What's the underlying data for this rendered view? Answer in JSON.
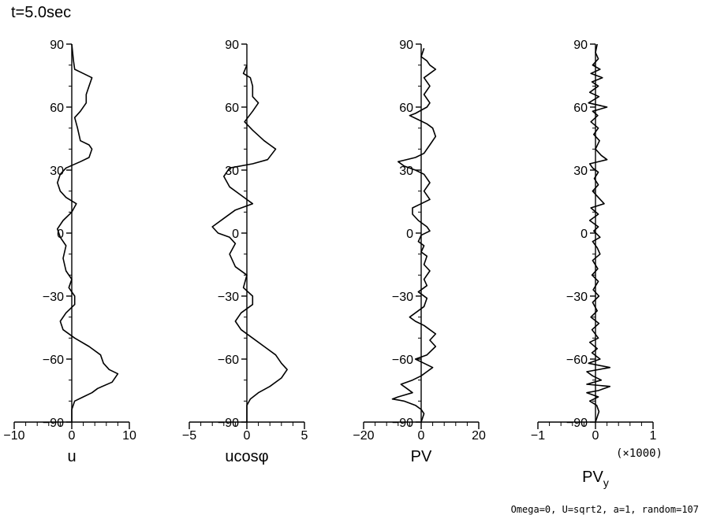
{
  "title": "t=5.0sec",
  "footer": "Omega=0, U=sqrt2, a=1, random=107",
  "chart_data": [
    {
      "type": "line",
      "xlabel": "u",
      "xticks": [
        "−10",
        "0",
        "10"
      ],
      "xlim": [
        -10,
        10
      ],
      "yticks": [
        "90",
        "60",
        "30",
        "0",
        "−30",
        "−60",
        "−90"
      ],
      "ylim": [
        -90,
        90
      ],
      "series": [
        {
          "points": [
            [
              0,
              90
            ],
            [
              0.3,
              82
            ],
            [
              0.5,
              78
            ],
            [
              2,
              76
            ],
            [
              3.5,
              74
            ],
            [
              3,
              70
            ],
            [
              2.5,
              66
            ],
            [
              2.5,
              62
            ],
            [
              1.5,
              58
            ],
            [
              0.5,
              55
            ],
            [
              1,
              50
            ],
            [
              1.5,
              44
            ],
            [
              3,
              42
            ],
            [
              3.5,
              40
            ],
            [
              3,
              36
            ],
            [
              1.5,
              34
            ],
            [
              -1,
              31
            ],
            [
              -2,
              28
            ],
            [
              -2.5,
              24
            ],
            [
              -2,
              20
            ],
            [
              -1,
              17
            ],
            [
              0.8,
              14
            ],
            [
              0,
              10
            ],
            [
              -1.5,
              6
            ],
            [
              -2.5,
              2
            ],
            [
              -2,
              -2
            ],
            [
              -1,
              -6
            ],
            [
              -1.5,
              -12
            ],
            [
              -1,
              -18
            ],
            [
              0,
              -22
            ],
            [
              -0.5,
              -26
            ],
            [
              0.5,
              -30
            ],
            [
              0.5,
              -34
            ],
            [
              -1,
              -38
            ],
            [
              -2,
              -42
            ],
            [
              -1.5,
              -46
            ],
            [
              0.5,
              -50
            ],
            [
              3,
              -54
            ],
            [
              5,
              -58
            ],
            [
              5.5,
              -62
            ],
            [
              6.5,
              -65
            ],
            [
              8,
              -67
            ],
            [
              7,
              -71
            ],
            [
              4.5,
              -74
            ],
            [
              3.5,
              -76
            ],
            [
              2,
              -78
            ],
            [
              0.5,
              -80
            ],
            [
              0,
              -84
            ],
            [
              0,
              -90
            ]
          ]
        }
      ]
    },
    {
      "type": "line",
      "xlabel": "ucosφ",
      "xticks": [
        "−5",
        "0",
        "5"
      ],
      "xlim": [
        -5,
        5
      ],
      "yticks": [
        "90",
        "60",
        "30",
        "0",
        "−30",
        "−60",
        "−90"
      ],
      "ylim": [
        -90,
        90
      ],
      "series": [
        {
          "points": [
            [
              0,
              80
            ],
            [
              -0.3,
              76
            ],
            [
              0.3,
              74
            ],
            [
              0.5,
              70
            ],
            [
              0.5,
              65
            ],
            [
              1,
              62
            ],
            [
              0.5,
              58
            ],
            [
              -0.2,
              53
            ],
            [
              0.5,
              49
            ],
            [
              1.5,
              44
            ],
            [
              2,
              42
            ],
            [
              2.5,
              40
            ],
            [
              1.8,
              35
            ],
            [
              0.5,
              33
            ],
            [
              -1.5,
              31
            ],
            [
              -2,
              27
            ],
            [
              -1.5,
              22
            ],
            [
              -0.5,
              18
            ],
            [
              0.5,
              14
            ],
            [
              -1,
              11
            ],
            [
              -2,
              7
            ],
            [
              -3,
              3
            ],
            [
              -2.5,
              0
            ],
            [
              -1.5,
              -2
            ],
            [
              -1,
              -5
            ],
            [
              -1.5,
              -10
            ],
            [
              -1,
              -16
            ],
            [
              0,
              -20
            ],
            [
              -0.3,
              -26
            ],
            [
              0.5,
              -30
            ],
            [
              0.5,
              -34
            ],
            [
              -0.5,
              -38
            ],
            [
              -1,
              -42
            ],
            [
              -0.5,
              -46
            ],
            [
              0.5,
              -50
            ],
            [
              1.5,
              -54
            ],
            [
              2.5,
              -58
            ],
            [
              3,
              -62
            ],
            [
              3.5,
              -65
            ],
            [
              3,
              -69
            ],
            [
              2,
              -73
            ],
            [
              1,
              -76
            ],
            [
              0.3,
              -79
            ],
            [
              0,
              -82
            ],
            [
              0,
              -90
            ]
          ]
        }
      ]
    },
    {
      "type": "line",
      "xlabel": "PV",
      "xticks": [
        "−20",
        "0",
        "20"
      ],
      "xlim": [
        -20,
        20
      ],
      "yticks": [
        "90",
        "60",
        "30",
        "0",
        "−30",
        "−60",
        "−90"
      ],
      "ylim": [
        -90,
        90
      ],
      "series": [
        {
          "points": [
            [
              1,
              88
            ],
            [
              0,
              84
            ],
            [
              2,
              82
            ],
            [
              3,
              80
            ],
            [
              5,
              78
            ],
            [
              3,
              76
            ],
            [
              1,
              74
            ],
            [
              3,
              70
            ],
            [
              1,
              66
            ],
            [
              3,
              62
            ],
            [
              2,
              60
            ],
            [
              -2,
              57
            ],
            [
              -4,
              56
            ],
            [
              -1,
              54
            ],
            [
              2,
              52
            ],
            [
              4,
              50
            ],
            [
              5,
              46
            ],
            [
              3,
              42
            ],
            [
              1,
              38
            ],
            [
              -2,
              36
            ],
            [
              -8,
              34
            ],
            [
              -6,
              32
            ],
            [
              -2,
              30
            ],
            [
              1,
              28
            ],
            [
              3,
              24
            ],
            [
              1,
              20
            ],
            [
              3,
              16
            ],
            [
              0,
              14
            ],
            [
              -3,
              12
            ],
            [
              -3,
              9
            ],
            [
              -1,
              6
            ],
            [
              2,
              3
            ],
            [
              3,
              1
            ],
            [
              0,
              -1
            ],
            [
              -1,
              -4
            ],
            [
              1,
              -6
            ],
            [
              0,
              -9
            ],
            [
              2,
              -11
            ],
            [
              1,
              -15
            ],
            [
              3,
              -18
            ],
            [
              1,
              -22
            ],
            [
              2,
              -25
            ],
            [
              -1,
              -28
            ],
            [
              2,
              -31
            ],
            [
              1,
              -35
            ],
            [
              -2,
              -38
            ],
            [
              -4,
              -40
            ],
            [
              -2,
              -42
            ],
            [
              1,
              -44
            ],
            [
              3,
              -46
            ],
            [
              5,
              -48
            ],
            [
              3,
              -51
            ],
            [
              5,
              -54
            ],
            [
              2,
              -58
            ],
            [
              -2,
              -60
            ],
            [
              1,
              -62
            ],
            [
              4,
              -64
            ],
            [
              2,
              -66
            ],
            [
              0,
              -68
            ],
            [
              -3,
              -70
            ],
            [
              -7,
              -72
            ],
            [
              -5,
              -74
            ],
            [
              -3,
              -76
            ],
            [
              -8,
              -78
            ],
            [
              -10,
              -79
            ],
            [
              -6,
              -80
            ],
            [
              -2,
              -82
            ],
            [
              0,
              -84
            ],
            [
              1,
              -86
            ],
            [
              0,
              -90
            ]
          ]
        }
      ]
    },
    {
      "type": "line",
      "xlabel": "PV",
      "xlabel_sub": "y",
      "scale_note": "(×1000)",
      "xticks": [
        "−1",
        "0",
        "1"
      ],
      "xlim": [
        -1,
        1
      ],
      "yticks": [
        "90",
        "60",
        "30",
        "0",
        "−30",
        "−60",
        "−90"
      ],
      "ylim": [
        -90,
        90
      ],
      "series": [
        {
          "points": [
            [
              0.03,
              90
            ],
            [
              0,
              86
            ],
            [
              0.05,
              83
            ],
            [
              -0.05,
              80
            ],
            [
              0.08,
              78
            ],
            [
              -0.08,
              76
            ],
            [
              0.12,
              74
            ],
            [
              -0.06,
              72
            ],
            [
              0.05,
              70
            ],
            [
              -0.1,
              67
            ],
            [
              0.06,
              65
            ],
            [
              -0.12,
              62
            ],
            [
              0.2,
              60
            ],
            [
              -0.05,
              58
            ],
            [
              0.04,
              56
            ],
            [
              -0.08,
              53
            ],
            [
              0.05,
              50
            ],
            [
              -0.03,
              47
            ],
            [
              0.07,
              44
            ],
            [
              0,
              40
            ],
            [
              0.1,
              37
            ],
            [
              0.2,
              35
            ],
            [
              -0.1,
              33
            ],
            [
              -0.05,
              31
            ],
            [
              0.05,
              29
            ],
            [
              -0.02,
              26
            ],
            [
              0.05,
              23
            ],
            [
              -0.05,
              20
            ],
            [
              0.05,
              17
            ],
            [
              0.15,
              14
            ],
            [
              -0.08,
              12
            ],
            [
              0.05,
              9
            ],
            [
              -0.1,
              6
            ],
            [
              0.05,
              3
            ],
            [
              -0.03,
              1
            ],
            [
              0.08,
              -2
            ],
            [
              -0.05,
              -4
            ],
            [
              0.03,
              -7
            ],
            [
              0.08,
              -10
            ],
            [
              -0.05,
              -13
            ],
            [
              0.04,
              -17
            ],
            [
              -0.06,
              -20
            ],
            [
              0.05,
              -23
            ],
            [
              -0.04,
              -27
            ],
            [
              0.06,
              -30
            ],
            [
              -0.05,
              -33
            ],
            [
              0.03,
              -37
            ],
            [
              -0.08,
              -40
            ],
            [
              0.06,
              -43
            ],
            [
              -0.06,
              -46
            ],
            [
              0.05,
              -50
            ],
            [
              -0.1,
              -52
            ],
            [
              0.03,
              -55
            ],
            [
              -0.06,
              -57
            ],
            [
              0.08,
              -60
            ],
            [
              -0.12,
              -62
            ],
            [
              0.25,
              -64
            ],
            [
              -0.15,
              -66
            ],
            [
              -0.05,
              -68
            ],
            [
              0.1,
              -70
            ],
            [
              -0.15,
              -72
            ],
            [
              0.25,
              -73
            ],
            [
              0.05,
              -75
            ],
            [
              -0.15,
              -76
            ],
            [
              0.05,
              -78
            ],
            [
              -0.1,
              -80
            ],
            [
              0.02,
              -82
            ],
            [
              0.06,
              -85
            ],
            [
              0,
              -90
            ]
          ]
        }
      ]
    }
  ]
}
